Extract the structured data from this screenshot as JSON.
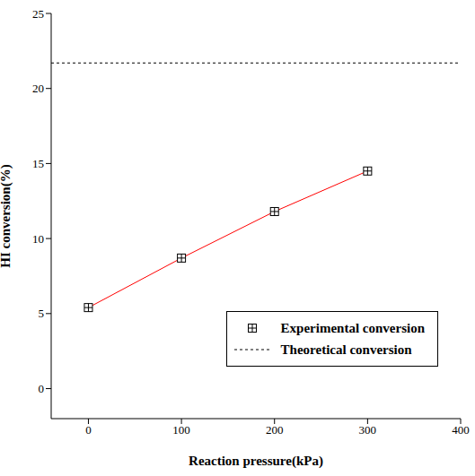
{
  "chart_data": {
    "type": "line",
    "x_label": "Reaction pressure(kPa)",
    "y_label": "HI conversion(%)",
    "xlim": [
      -40,
      400
    ],
    "xticks": [
      0,
      100,
      200,
      300,
      400
    ],
    "ylim": [
      -2,
      25
    ],
    "yticks": [
      0,
      5,
      10,
      15,
      20,
      25
    ],
    "legend": "lower right",
    "series": [
      {
        "name": "Experimental conversion",
        "color": "#ff0000",
        "marker": "square",
        "line_style": "solid",
        "x": [
          0,
          100,
          200,
          300
        ],
        "values": [
          5.4,
          8.7,
          11.8,
          14.5
        ]
      },
      {
        "name": "Theoretical conversion",
        "color": "#000000",
        "line_style": "dashed",
        "x": [
          -40,
          400
        ],
        "values": [
          21.7,
          21.7
        ]
      }
    ]
  }
}
